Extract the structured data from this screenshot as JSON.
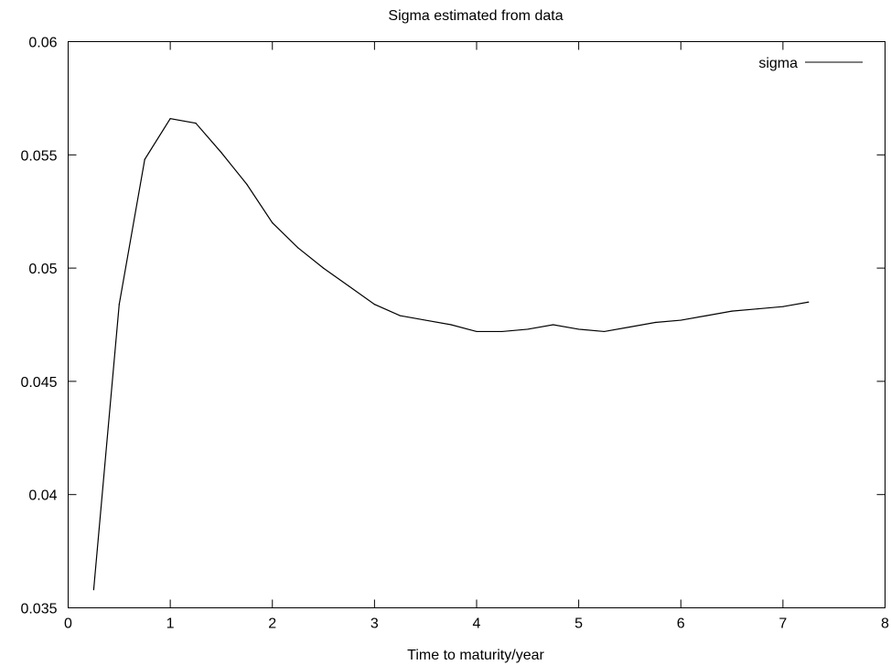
{
  "chart_data": {
    "type": "line",
    "title": "Sigma estimated from data",
    "xlabel": "Time to maturity/year",
    "ylabel": "",
    "xlim": [
      0,
      8
    ],
    "ylim": [
      0.035,
      0.06
    ],
    "xticks": [
      "0",
      "1",
      "2",
      "3",
      "4",
      "5",
      "6",
      "7",
      "8"
    ],
    "yticks": [
      "0.035",
      "0.04",
      "0.045",
      "0.05",
      "0.055",
      "0.06"
    ],
    "grid": false,
    "legend_position": "top-right",
    "series": [
      {
        "name": "sigma",
        "color": "#000000",
        "x": [
          0.25,
          0.5,
          0.75,
          1.0,
          1.25,
          1.5,
          1.75,
          2.0,
          2.25,
          2.5,
          2.75,
          3.0,
          3.25,
          3.5,
          3.75,
          4.0,
          4.25,
          4.5,
          4.75,
          5.0,
          5.25,
          5.5,
          5.75,
          6.0,
          6.25,
          6.5,
          6.75,
          7.0,
          7.25
        ],
        "y": [
          0.0358,
          0.0484,
          0.0548,
          0.0566,
          0.0564,
          0.0551,
          0.0537,
          0.052,
          0.0509,
          0.05,
          0.0492,
          0.0484,
          0.0479,
          0.0477,
          0.0475,
          0.0472,
          0.0472,
          0.0473,
          0.0475,
          0.0473,
          0.0472,
          0.0474,
          0.0476,
          0.0477,
          0.0479,
          0.0481,
          0.0482,
          0.0483,
          0.0485
        ]
      }
    ]
  }
}
